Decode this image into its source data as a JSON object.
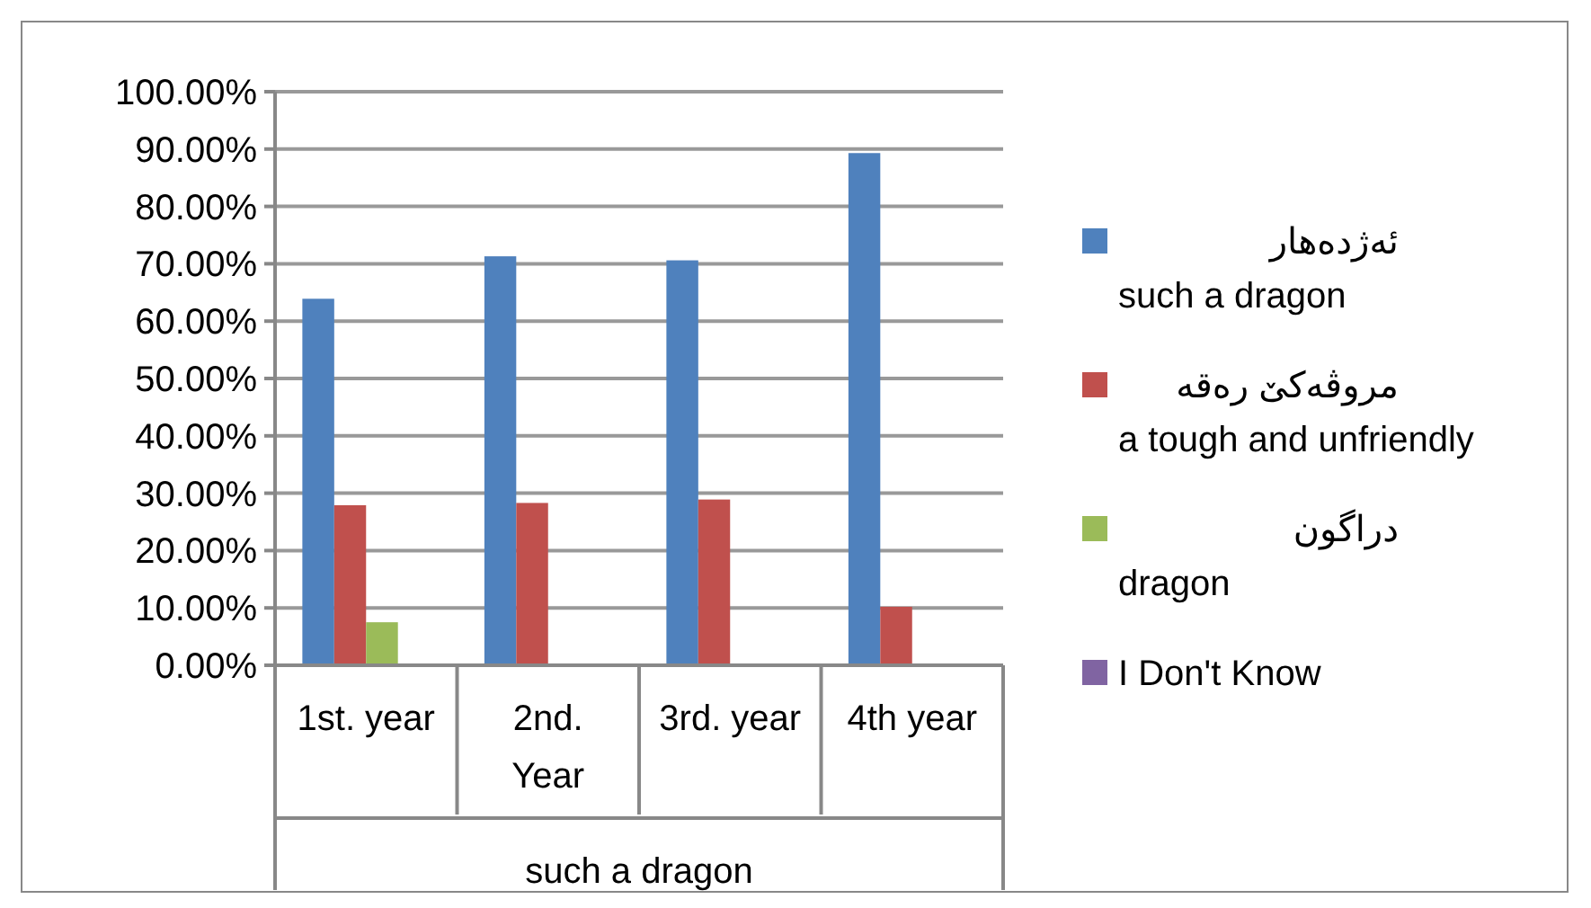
{
  "chart_data": {
    "type": "bar",
    "categories": [
      "1st. year",
      "2nd.\nYear",
      "3rd. year",
      "4th year"
    ],
    "xlabel": "such a dragon",
    "series": [
      {
        "name": "ئەژدەهار\nsuch a dragon",
        "color": "#4f81bd",
        "values": [
          63.9,
          71.3,
          70.6,
          89.3
        ]
      },
      {
        "name": "مروڤەکێ رەقە\na tough and unfriendly",
        "color": "#c0504d",
        "values": [
          27.9,
          28.3,
          28.9,
          10.2
        ]
      },
      {
        "name": "دراگون\ndragon",
        "color": "#9bbb59",
        "values": [
          7.5,
          0,
          0,
          0
        ]
      },
      {
        "name": "I Don't Know",
        "color": "#8064a2",
        "values": [
          0,
          0,
          0,
          0
        ]
      }
    ],
    "ylim": [
      0,
      100
    ],
    "yticks": [
      {
        "value": 0,
        "label": "0.00%"
      },
      {
        "value": 10,
        "label": "10.00%"
      },
      {
        "value": 20,
        "label": "20.00%"
      },
      {
        "value": 30,
        "label": "30.00%"
      },
      {
        "value": 40,
        "label": "40.00%"
      },
      {
        "value": 50,
        "label": "50.00%"
      },
      {
        "value": 60,
        "label": "60.00%"
      },
      {
        "value": 70,
        "label": "70.00%"
      },
      {
        "value": 80,
        "label": "80.00%"
      },
      {
        "value": 90,
        "label": "90.00%"
      },
      {
        "value": 100,
        "label": "100.00%"
      }
    ],
    "grid": "y",
    "legend": "right"
  }
}
